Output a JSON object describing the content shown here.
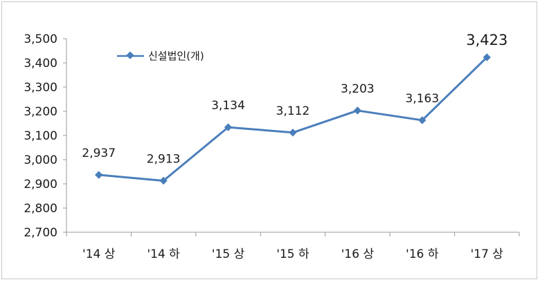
{
  "chart_data": {
    "type": "line",
    "categories": [
      "'14 상",
      "'14 하",
      "'15 상",
      "'15 하",
      "'16 상",
      "'16 하",
      "'17 상"
    ],
    "series": [
      {
        "name": "신설법인(개)",
        "values": [
          2937,
          2913,
          3134,
          3112,
          3203,
          3163,
          3423
        ],
        "labels": [
          "2,937",
          "2,913",
          "3,134",
          "3,112",
          "3,203",
          "3,163",
          "3,423"
        ],
        "color": "#4a7ebb"
      }
    ],
    "highlight": {
      "index": 6,
      "color": "#e00000"
    },
    "ylim": [
      2700,
      3500
    ],
    "yticks": [
      2700,
      2800,
      2900,
      3000,
      3100,
      3200,
      3300,
      3400,
      3500
    ],
    "ytick_labels": [
      "2,700",
      "2,800",
      "2,900",
      "3,000",
      "3,100",
      "3,200",
      "3,300",
      "3,400",
      "3,500"
    ],
    "legend": {
      "placement": "top-left"
    },
    "grid": false,
    "title": "",
    "xlabel": "",
    "ylabel": ""
  }
}
